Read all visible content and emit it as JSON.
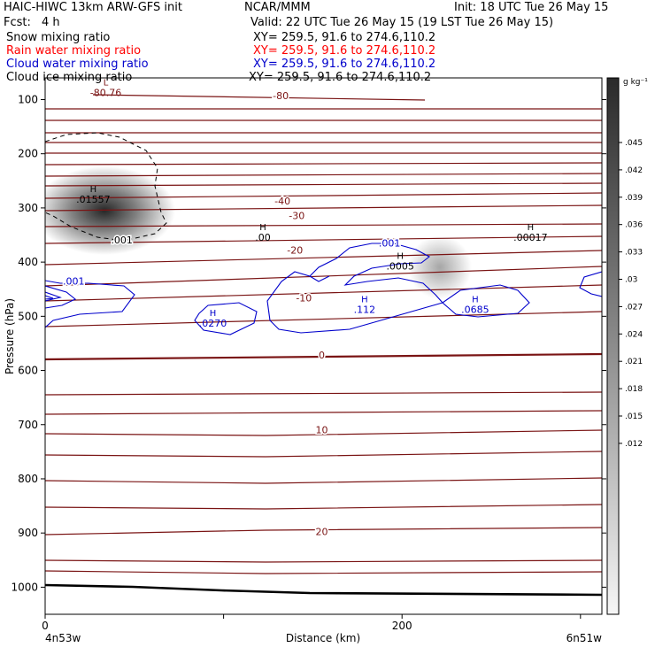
{
  "header": {
    "model": "HAIC-HIWC 13km ARW-GFS init",
    "center": "NCAR/MMM",
    "init": "Init: 18 UTC Tue 26 May 15",
    "fcst_label": "Fcst:",
    "fcst_value": "4 h",
    "valid": "Valid: 22 UTC Tue 26 May 15 (19 LST Tue 26 May 15)",
    "fields": [
      {
        "name": "Snow mixing ratio",
        "xy": "XY= 259.5, 91.6 to 274.6,110.2",
        "color": "#000000"
      },
      {
        "name": "Rain water mixing ratio",
        "xy": "XY= 259.5, 91.6 to 274.6,110.2",
        "color": "#ff0000"
      },
      {
        "name": "Cloud water mixing ratio",
        "xy": "XY= 259.5, 91.6 to 274.6,110.2",
        "color": "#0000cc"
      },
      {
        "name": "Cloud ice mixing ratio",
        "xy": "XY= 259.5, 91.6 to 274.6,110.2",
        "color": "#000000"
      }
    ]
  },
  "chart_data": {
    "type": "contour cross-section",
    "xlabel": "Distance (km)",
    "ylabel": "Pressure (hPa)",
    "x_ticks": [
      0,
      100,
      200,
      300
    ],
    "x_tick_labels": [
      "0",
      "",
      "200",
      ""
    ],
    "y_ticks": [
      100,
      200,
      300,
      400,
      500,
      600,
      700,
      800,
      900,
      1000
    ],
    "y_tick_labels": [
      "100",
      "200",
      "300",
      "400",
      "500",
      "600",
      "700",
      "800",
      "900",
      "1000"
    ],
    "xlim": [
      0,
      312
    ],
    "ylim_top": 60,
    "ylim_bottom": 1050,
    "endpoint_left": "4n53w",
    "endpoint_right": "6n51w",
    "colorbar_units": "g kg⁻¹",
    "colorbar_labels": [
      ".045",
      ".042",
      ".039",
      ".036",
      ".033",
      ".03",
      ".027",
      ".024",
      ".021",
      ".018",
      ".015",
      ".012"
    ],
    "temperature_contours": {
      "color": "#7a1414",
      "labels": [
        {
          "text": "-80",
          "x": 132,
          "p": 93
        },
        {
          "text": "-40",
          "x": 133,
          "p": 287
        },
        {
          "text": "-30",
          "x": 141,
          "p": 314
        },
        {
          "text": "-20",
          "x": 140,
          "p": 378
        },
        {
          "text": "-10",
          "x": 145,
          "p": 466
        },
        {
          "text": "0",
          "x": 155,
          "p": 571
        },
        {
          "text": "10",
          "x": 155,
          "p": 709
        },
        {
          "text": "20",
          "x": 155,
          "p": 897
        }
      ]
    },
    "extrema": [
      {
        "symbol": "L",
        "value": "-80.76",
        "x": 34,
        "p": 82,
        "color": "#7a1414"
      },
      {
        "symbol": "H",
        "value": ".01557",
        "x": 27,
        "p": 279,
        "color": "#000000"
      },
      {
        "symbol": "H",
        "value": ".00",
        "x": 122,
        "p": 349,
        "color": "#000000"
      },
      {
        "symbol": "H",
        "value": ".00017",
        "x": 272,
        "p": 349,
        "color": "#000000"
      },
      {
        "symbol": "H",
        "value": ".0005",
        "x": 199,
        "p": 402,
        "color": "#000000"
      },
      {
        "symbol": "H",
        "value": ".112",
        "x": 179,
        "p": 482,
        "color": "#0000cc"
      },
      {
        "symbol": "H",
        "value": ".0685",
        "x": 241,
        "p": 482,
        "color": "#0000cc"
      },
      {
        "symbol": "H",
        "value": ".0270",
        "x": 94,
        "p": 508,
        "color": "#0000cc"
      }
    ],
    "contour_labels": [
      {
        "text": ".001",
        "x": 16,
        "p": 435,
        "color": "#0000cc"
      },
      {
        "text": ".001",
        "x": 193,
        "p": 365,
        "color": "#0000cc"
      },
      {
        "text": ".001",
        "x": 43,
        "p": 359,
        "color": "#000000"
      }
    ]
  }
}
